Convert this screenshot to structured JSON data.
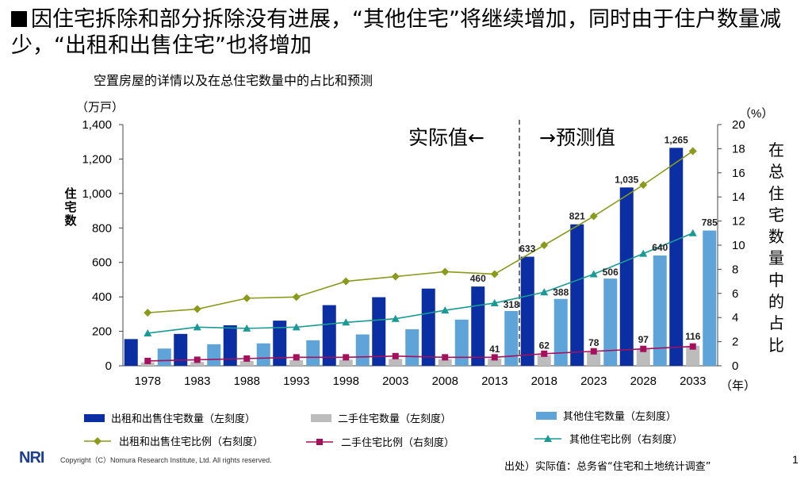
{
  "title": "因住宅拆除和部分拆除没有进展，“其他住宅”将继续增加，同时由于住户数量减少，“出租和出售住宅”也将增加",
  "subtitle": "空置房屋的详情以及在总住宅数量中的占比和预测",
  "left_axis_unit": "（万戸）",
  "left_axis_title": "住宅数",
  "right_axis_unit": "（%）",
  "right_axis_title": "在总住宅数量中的占比",
  "x_unit": "（年）",
  "actual_label": "实际值←",
  "forecast_label": "→预测值",
  "footer": {
    "logo": "NRI",
    "copyright": "Copyright（C）Nomura Research Institute, Ltd. All rights reserved.",
    "source": "出处）实际值：总务省“住宅和土地统计调查”",
    "page": "1"
  },
  "legend": {
    "rent_sale_count": "出租和出售住宅数量（左刻度）",
    "secondhand_count": "二手住宅数量（左刻度）",
    "other_count": "其他住宅数量（左刻度）",
    "rent_sale_ratio": "出租和出售住宅比例（右刻度）",
    "secondhand_ratio": "二手住宅比例（右刻度）",
    "other_ratio": "其他住宅比例（右刻度）"
  },
  "colors": {
    "rent_sale": "#0b2ea3",
    "secondhand": "#bcbcbc",
    "other": "#5ea4d8",
    "rent_sale_line": "#8a9a1a",
    "secondhand_line": "#a5105c",
    "other_line": "#1a9a94"
  },
  "chart_data": {
    "type": "bar",
    "categories": [
      "1978",
      "1983",
      "1988",
      "1993",
      "1998",
      "2003",
      "2008",
      "2013",
      "2018",
      "2023",
      "2028",
      "2033"
    ],
    "ylim_left": [
      0,
      1400
    ],
    "yticks_left": [
      "0",
      "200",
      "400",
      "600",
      "800",
      "1,000",
      "1,200",
      "1,400"
    ],
    "ylim_right": [
      0,
      20
    ],
    "yticks_right": [
      "0",
      "2",
      "4",
      "6",
      "8",
      "10",
      "12",
      "14",
      "16",
      "18",
      "20"
    ],
    "series": [
      {
        "name": "出租和出售住宅数量（左刻度）",
        "axis": "left",
        "type": "bar",
        "values": [
          155,
          185,
          235,
          262,
          352,
          398,
          448,
          460,
          633,
          821,
          1035,
          1265
        ]
      },
      {
        "name": "二手住宅数量（左刻度）",
        "axis": "left",
        "type": "bar",
        "values": [
          20,
          22,
          28,
          32,
          35,
          40,
          38,
          41,
          62,
          78,
          97,
          116
        ]
      },
      {
        "name": "其他住宅数量（左刻度）",
        "axis": "left",
        "type": "bar",
        "values": [
          100,
          125,
          130,
          148,
          182,
          212,
          268,
          318,
          388,
          506,
          640,
          785
        ]
      },
      {
        "name": "出租和出售住宅比例（右刻度）",
        "axis": "right",
        "type": "line",
        "values": [
          4.4,
          4.7,
          5.6,
          5.7,
          7.0,
          7.4,
          7.8,
          7.6,
          10.0,
          12.4,
          15.0,
          17.8
        ]
      },
      {
        "name": "二手住宅比例（右刻度）",
        "axis": "right",
        "type": "line",
        "values": [
          0.4,
          0.5,
          0.6,
          0.7,
          0.7,
          0.8,
          0.7,
          0.7,
          1.0,
          1.2,
          1.4,
          1.6
        ]
      },
      {
        "name": "其他住宅比例（右刻度）",
        "axis": "right",
        "type": "line",
        "values": [
          2.7,
          3.2,
          3.1,
          3.2,
          3.6,
          3.9,
          4.6,
          5.2,
          6.1,
          7.6,
          9.3,
          11.0
        ]
      }
    ],
    "data_labels": [
      {
        "series": 0,
        "index": 7,
        "text": "460"
      },
      {
        "series": 0,
        "index": 8,
        "text": "633"
      },
      {
        "series": 0,
        "index": 9,
        "text": "821"
      },
      {
        "series": 0,
        "index": 10,
        "text": "1,035"
      },
      {
        "series": 0,
        "index": 11,
        "text": "1,265"
      },
      {
        "series": 1,
        "index": 7,
        "text": "41"
      },
      {
        "series": 1,
        "index": 8,
        "text": "62"
      },
      {
        "series": 1,
        "index": 9,
        "text": "78"
      },
      {
        "series": 1,
        "index": 10,
        "text": "97"
      },
      {
        "series": 1,
        "index": 11,
        "text": "116"
      },
      {
        "series": 2,
        "index": 7,
        "text": "318"
      },
      {
        "series": 2,
        "index": 8,
        "text": "388"
      },
      {
        "series": 2,
        "index": 9,
        "text": "506"
      },
      {
        "series": 2,
        "index": 10,
        "text": "640"
      },
      {
        "series": 2,
        "index": 11,
        "text": "785"
      }
    ],
    "divider_after_category": "2013"
  }
}
